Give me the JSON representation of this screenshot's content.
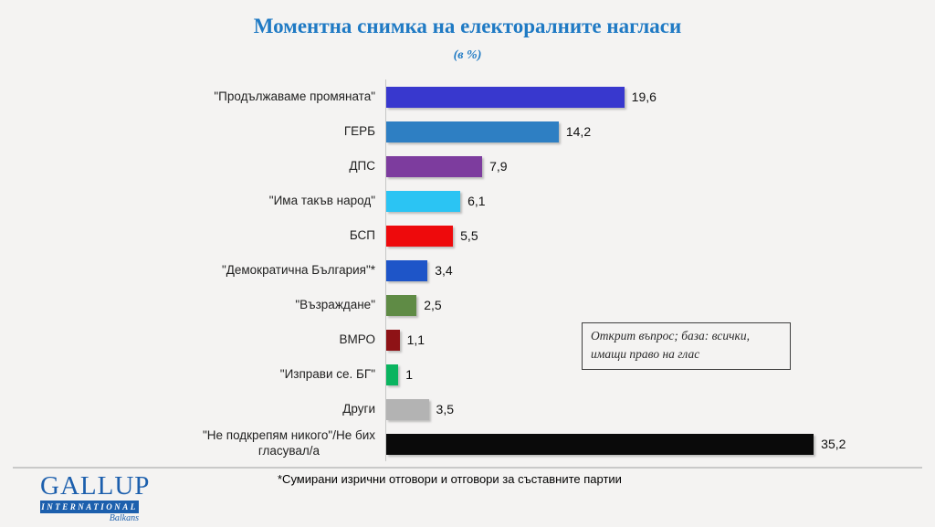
{
  "title": "Моментна снимка на електоралните нагласи",
  "subtitle": "(в %)",
  "chart_data": {
    "type": "bar",
    "orientation": "horizontal",
    "categories": [
      "\"Продължаваме промяната\"",
      "ГЕРБ",
      "ДПС",
      "\"Има такъв народ\"",
      "БСП",
      "\"Демократична България\"*",
      "\"Възраждане\"",
      "ВМРО",
      "\"Изправи се. БГ\"",
      "Други",
      "\"Не подкрепям никого\"/Не бих\nгласувал/а"
    ],
    "values": [
      19.6,
      14.2,
      7.9,
      6.1,
      5.5,
      3.4,
      2.5,
      1.1,
      1,
      3.5,
      35.2
    ],
    "value_labels": [
      "19,6",
      "14,2",
      "7,9",
      "6,1",
      "5,5",
      "3,4",
      "2,5",
      "1,1",
      "1",
      "3,5",
      "35,2"
    ],
    "bar_colors": [
      "#3838CE",
      "#2E7FC3",
      "#7D3C9E",
      "#2BC4F3",
      "#EE0A0C",
      "#1E55C8",
      "#5F8B45",
      "#8E1216",
      "#0AB45F",
      "#B3B3B3",
      "#0A0A0A"
    ],
    "xlim": [
      0,
      36
    ],
    "grid": false,
    "legend": false,
    "title": "Моментна снимка на електоралните нагласи",
    "xlabel": "",
    "ylabel": ""
  },
  "annotation": {
    "text": "Открит въпрос; база: всички, имащи право на глас"
  },
  "footnote": "*Сумирани изрични отговори и отговори за съставните партии",
  "logo": {
    "name": "GALLUP",
    "subname": "INTERNATIONAL",
    "region": "Balkans"
  },
  "colors": {
    "title_blue": "#1F7AC4",
    "logo_blue": "#1C5FAD",
    "background": "#F4F3F2",
    "axis_line": "#C6C6C6"
  }
}
